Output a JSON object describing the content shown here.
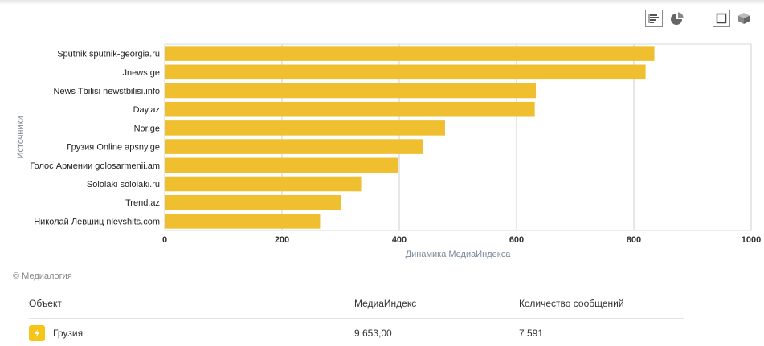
{
  "toolbar": {
    "buttons": [
      {
        "name": "bar-chart-view-button",
        "icon": "bar-chart-icon",
        "active": true
      },
      {
        "name": "pie-chart-view-button",
        "icon": "pie-chart-icon",
        "active": false
      },
      {
        "name": "flat-view-button",
        "icon": "square-icon",
        "active": true
      },
      {
        "name": "3d-view-button",
        "icon": "cube-icon",
        "active": false
      }
    ]
  },
  "chart_data": {
    "type": "bar",
    "orientation": "horizontal",
    "categories": [
      "Sputnik sputnik-georgia.ru",
      "Jnews.ge",
      "News Tbilisi newstbilisi.info",
      "Day.az",
      "Nor.ge",
      "Грузия Online apsny.ge",
      "Голос Армении golosarmenii.am",
      "Sololaki sololaki.ru",
      "Trend.az",
      "Николай Левшиц nlevshits.com"
    ],
    "values": [
      835,
      820,
      633,
      631,
      478,
      440,
      398,
      335,
      301,
      265
    ],
    "xlabel": "Динамика МедиаИндекса",
    "ylabel": "Источники",
    "xlim": [
      0,
      1000
    ],
    "xticks": [
      "0",
      "200",
      "400",
      "600",
      "800",
      "1000"
    ],
    "bar_color": "#f0bf30",
    "grid": true
  },
  "copyright": "© Медиалогия",
  "table": {
    "headers": {
      "object": "Объект",
      "mediaindex": "МедиаИндекс",
      "messages": "Количество сообщений"
    },
    "rows": [
      {
        "object": "Грузия",
        "mediaindex": "9 653,00",
        "messages": "7 591",
        "color": "#f5c518",
        "icon": "lightning-icon"
      }
    ]
  }
}
